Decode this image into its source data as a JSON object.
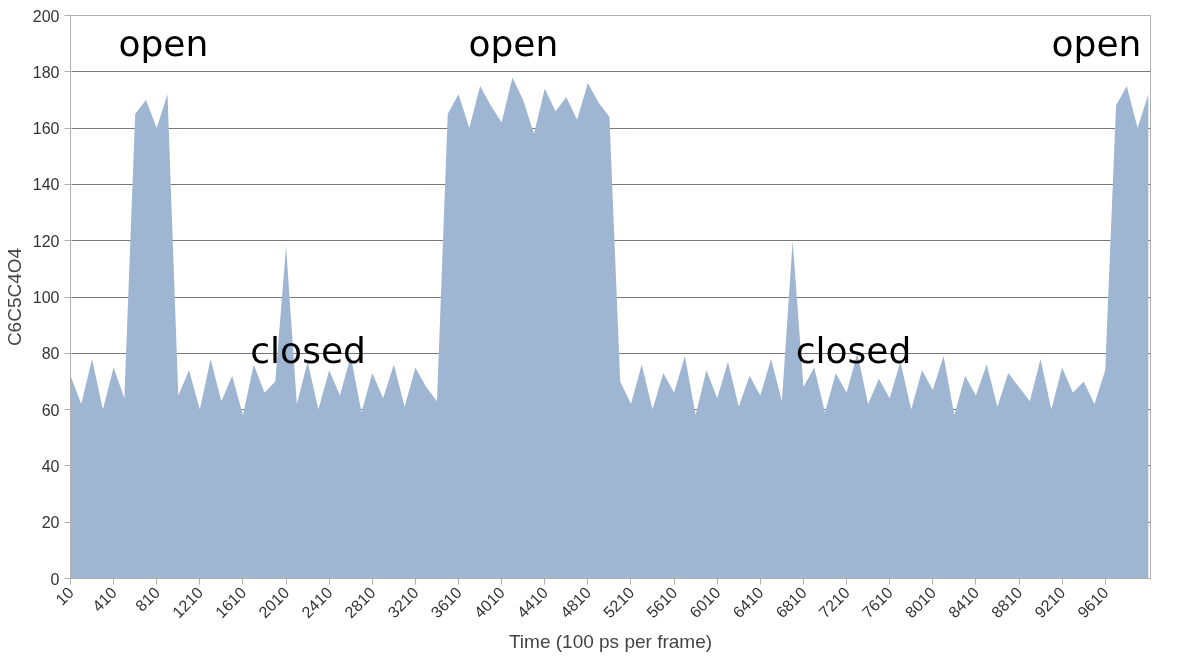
{
  "chart_data": {
    "type": "area",
    "xlabel": "Time (100 ps per frame)",
    "ylabel": "C6C5C4O4",
    "x": [
      10,
      110,
      210,
      310,
      410,
      510,
      610,
      710,
      810,
      910,
      1010,
      1110,
      1210,
      1310,
      1410,
      1510,
      1610,
      1710,
      1810,
      1910,
      2010,
      2110,
      2210,
      2310,
      2410,
      2510,
      2610,
      2710,
      2810,
      2910,
      3010,
      3110,
      3210,
      3310,
      3410,
      3510,
      3610,
      3710,
      3810,
      3910,
      4010,
      4110,
      4210,
      4310,
      4410,
      4510,
      4610,
      4710,
      4810,
      4910,
      5010,
      5110,
      5210,
      5310,
      5410,
      5510,
      5610,
      5710,
      5810,
      5910,
      6010,
      6110,
      6210,
      6310,
      6410,
      6510,
      6610,
      6710,
      6810,
      6910,
      7010,
      7110,
      7210,
      7310,
      7410,
      7510,
      7610,
      7710,
      7810,
      7910,
      8010,
      8110,
      8210,
      8310,
      8410,
      8510,
      8610,
      8710,
      8810,
      8910,
      9010,
      9110,
      9210,
      9310,
      9410,
      9510,
      9610,
      9710,
      9810,
      9910,
      10010
    ],
    "series": [
      {
        "color": "#9fb6d3",
        "values": [
          72,
          62,
          78,
          60,
          75,
          64,
          165,
          170,
          160,
          172,
          65,
          74,
          60,
          78,
          63,
          72,
          58,
          76,
          66,
          70,
          118,
          62,
          77,
          60,
          74,
          65,
          79,
          59,
          73,
          64,
          76,
          61,
          75,
          68,
          63,
          165,
          172,
          160,
          175,
          168,
          162,
          178,
          170,
          158,
          174,
          166,
          171,
          163,
          176,
          169,
          164,
          70,
          62,
          76,
          60,
          73,
          66,
          79,
          58,
          74,
          64,
          77,
          61,
          72,
          65,
          78,
          63,
          120,
          68,
          75,
          59,
          73,
          66,
          80,
          62,
          71,
          64,
          77,
          60,
          74,
          67,
          79,
          58,
          72,
          65,
          76,
          61,
          73,
          68,
          63,
          78,
          60,
          75,
          66,
          70,
          62,
          74,
          168,
          175,
          160,
          172
        ]
      }
    ],
    "xlim": [
      10,
      10030
    ],
    "xticks": [
      10,
      410,
      810,
      1210,
      1610,
      2010,
      2410,
      2810,
      3210,
      3610,
      4010,
      4410,
      4810,
      5210,
      5610,
      6010,
      6410,
      6810,
      7210,
      7610,
      8010,
      8410,
      8810,
      9210,
      9610
    ],
    "ylim": [
      0,
      200
    ],
    "yticks": [
      0,
      20,
      40,
      60,
      80,
      100,
      120,
      140,
      160,
      180,
      200
    ],
    "grid": "y",
    "annotations": [
      "open",
      "open",
      "open",
      "closed",
      "closed"
    ]
  }
}
